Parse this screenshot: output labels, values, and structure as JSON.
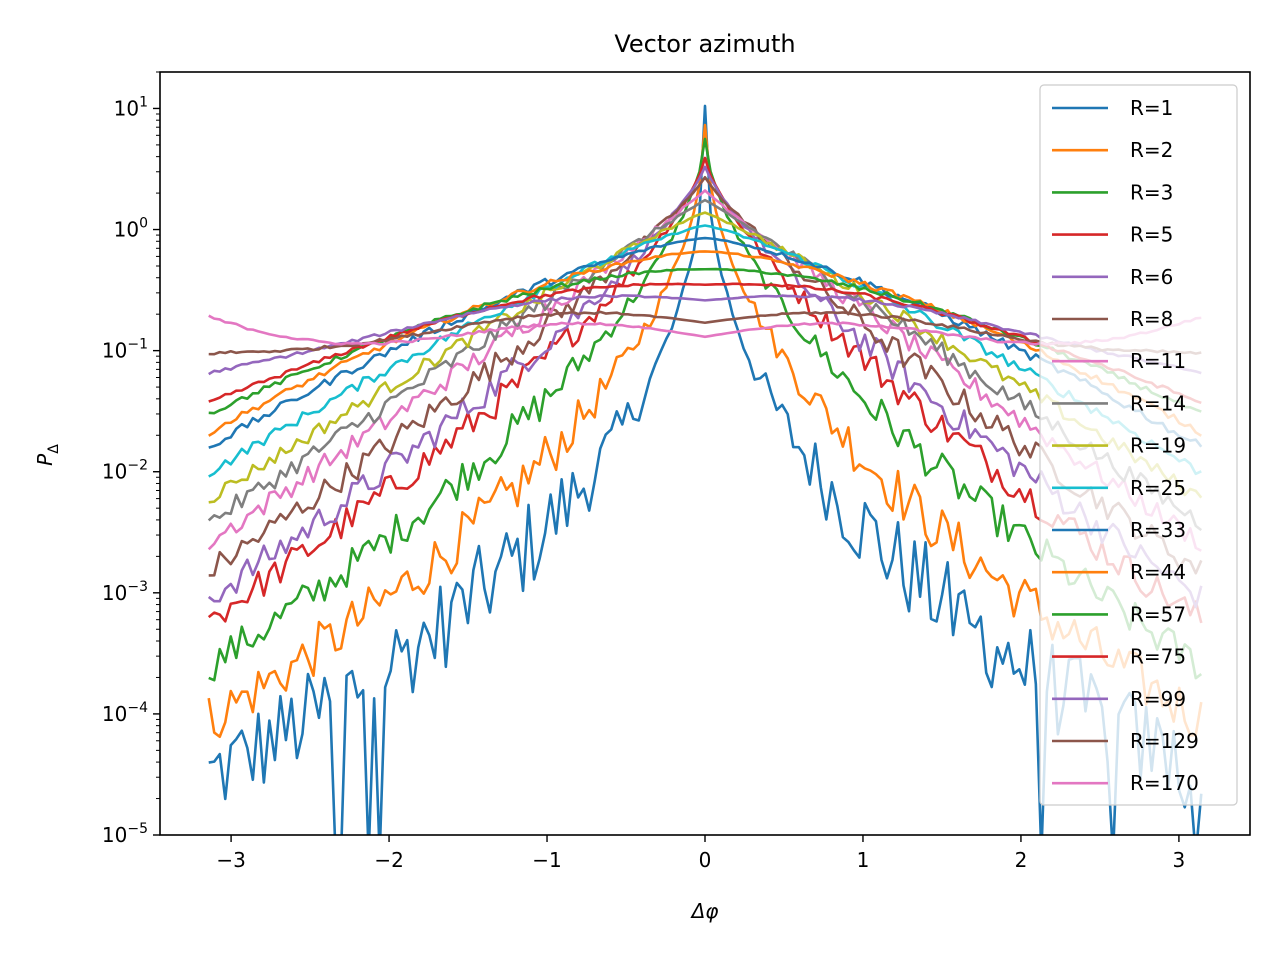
{
  "chart_data": {
    "type": "line",
    "title": "Vector azimuth",
    "xlabel": "Δφ",
    "ylabel_main": "P",
    "ylabel_sub": "Δ",
    "xlim": [
      -3.45,
      3.45
    ],
    "ylim": [
      1e-05,
      20
    ],
    "yscale": "log",
    "grid": false,
    "legend_position": "upper right",
    "x_ticks": [
      {
        "value": -3,
        "label": "−3"
      },
      {
        "value": -2,
        "label": "−2"
      },
      {
        "value": -1,
        "label": "−1"
      },
      {
        "value": 0,
        "label": "0"
      },
      {
        "value": 1,
        "label": "1"
      },
      {
        "value": 2,
        "label": "2"
      },
      {
        "value": 3,
        "label": "3"
      }
    ],
    "y_ticks": [
      {
        "exp": 1,
        "base": "10",
        "sup": "1"
      },
      {
        "exp": 0,
        "base": "10",
        "sup": "0"
      },
      {
        "exp": -1,
        "base": "10",
        "sup": "−1"
      },
      {
        "exp": -2,
        "base": "10",
        "sup": "−2"
      },
      {
        "exp": -3,
        "base": "10",
        "sup": "−3"
      },
      {
        "exp": -4,
        "base": "10",
        "sup": "−4"
      },
      {
        "exp": -5,
        "base": "10",
        "sup": "−5"
      }
    ],
    "series": [
      {
        "name": "R=1",
        "color": "#1f77b4",
        "peak": 10.5,
        "tail": 3e-05,
        "alpha": 7.0,
        "plateau": 0,
        "noise": 0.9
      },
      {
        "name": "R=2",
        "color": "#ff7f0e",
        "peak": 7.3,
        "tail": 9e-05,
        "alpha": 5.6,
        "plateau": 0,
        "noise": 0.5
      },
      {
        "name": "R=3",
        "color": "#2 ca02c",
        "peak": 5.6,
        "tail": 0.00025,
        "alpha": 4.6,
        "plateau": 0,
        "noise": 0.35
      },
      {
        "name": "R=5",
        "color": "#d62728",
        "peak": 3.9,
        "tail": 0.0006,
        "alpha": 3.9,
        "plateau": 0,
        "noise": 0.3
      },
      {
        "name": "R=6",
        "color": "#9467bd",
        "peak": 3.3,
        "tail": 0.0009,
        "alpha": 3.6,
        "plateau": 0,
        "noise": 0.28
      },
      {
        "name": "R=8",
        "color": "#8c564b",
        "peak": 2.7,
        "tail": 0.0015,
        "alpha": 3.3,
        "plateau": 0,
        "noise": 0.25
      },
      {
        "name": "R=11",
        "color": "#e377c2",
        "peak": 2.1,
        "tail": 0.0026,
        "alpha": 3.0,
        "plateau": 0,
        "noise": 0.2
      },
      {
        "name": "R=14",
        "color": "#7f7f7f",
        "peak": 1.75,
        "tail": 0.0038,
        "alpha": 2.8,
        "plateau": 0,
        "noise": 0.18
      },
      {
        "name": "R=19",
        "color": "#bcbd22",
        "peak": 1.38,
        "tail": 0.006,
        "alpha": 2.6,
        "plateau": 0,
        "noise": 0.14
      },
      {
        "name": "R=25",
        "color": "#17becf",
        "peak": 1.08,
        "tail": 0.0098,
        "alpha": 2.35,
        "plateau": 0,
        "noise": 0.1
      },
      {
        "name": "R=33",
        "color": "#1f77b4",
        "peak": 0.85,
        "tail": 0.016,
        "alpha": 2.1,
        "plateau": 0,
        "noise": 0.08
      },
      {
        "name": "R=44",
        "color": "#ff7f0e",
        "peak": 0.66,
        "tail": 0.021,
        "alpha": 1.9,
        "plateau": 0,
        "noise": 0.06
      },
      {
        "name": "R=57",
        "color": "#2ca02c",
        "peak": 0.47,
        "tail": 0.03,
        "alpha": 1.7,
        "plateau": 0.12,
        "noise": 0.05
      },
      {
        "name": "R=75",
        "color": "#d62728",
        "peak": 0.35,
        "tail": 0.037,
        "alpha": 1.5,
        "plateau": 0.25,
        "noise": 0.04
      },
      {
        "name": "R=99",
        "color": "#9467bd",
        "peak": 0.26,
        "tail": 0.065,
        "alpha": 1.3,
        "plateau": 0.5,
        "noise": 0.03
      },
      {
        "name": "R=129",
        "color": "#8c564b",
        "peak": 0.17,
        "tail": 0.095,
        "alpha": 1.0,
        "plateau": 0.8,
        "noise": 0.03
      },
      {
        "name": "R=170",
        "color": "#e377c2",
        "peak": 0.13,
        "tail": 0.19,
        "alpha": 0.8,
        "plateau": 1.0,
        "noise": 0.025
      }
    ]
  }
}
